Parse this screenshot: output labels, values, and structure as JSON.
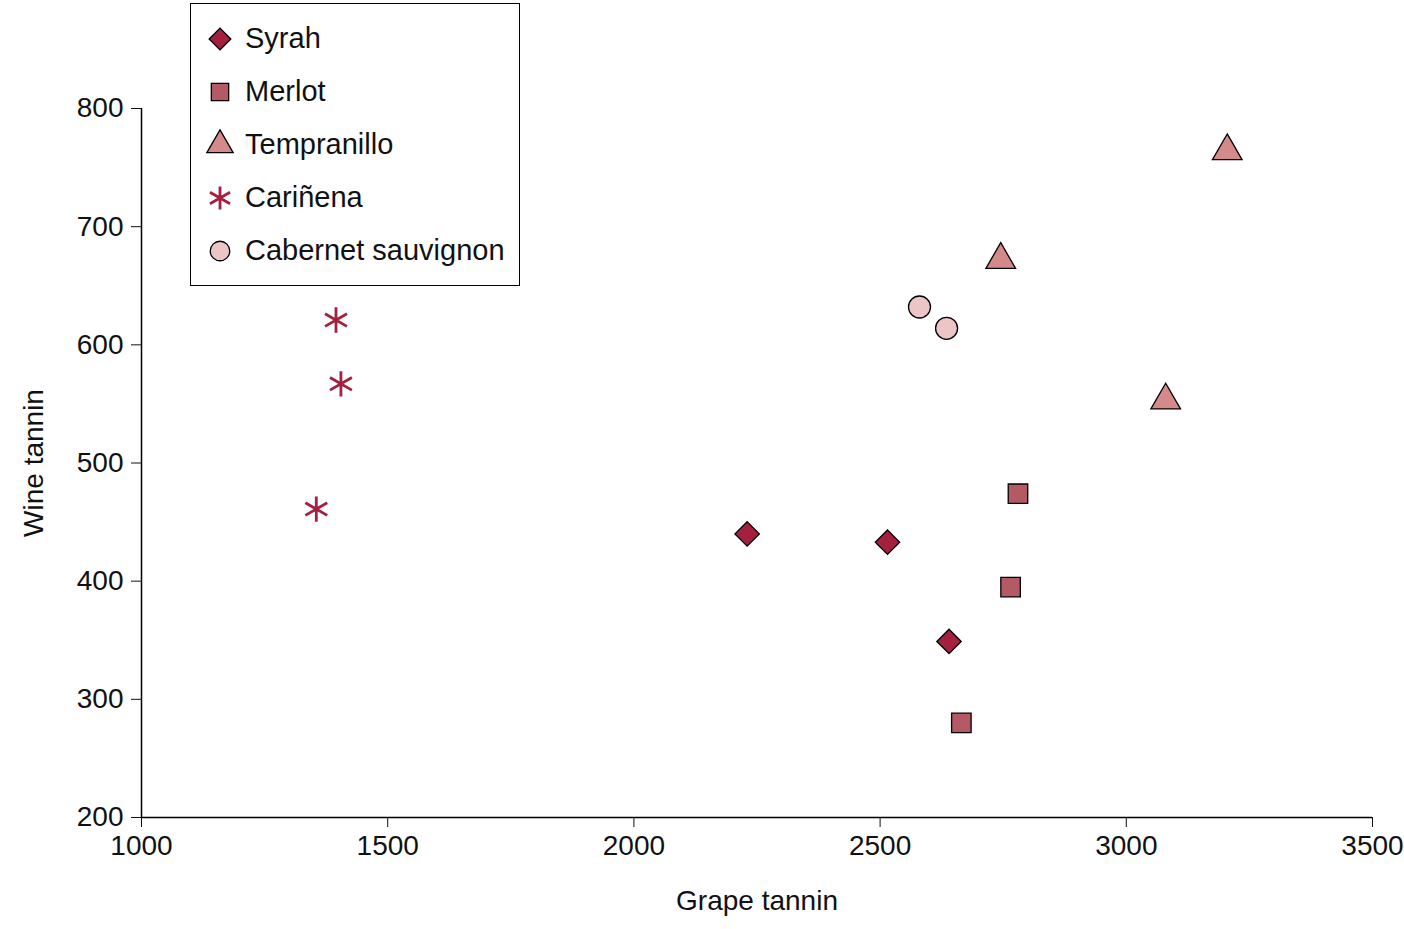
{
  "chart_data": {
    "type": "scatter",
    "x_label": "Grape tannin",
    "y_label": "Wine tannin",
    "xlim": [
      1000,
      3500
    ],
    "xticks": [
      1000,
      1500,
      2000,
      2500,
      3000,
      3500
    ],
    "ylim": [
      200,
      800
    ],
    "yticks": [
      200,
      300,
      400,
      500,
      600,
      700,
      800
    ],
    "grid": false,
    "legend": "upper left",
    "series": [
      {
        "name": "Syrah",
        "color": "#a3203f",
        "marker": "diamond",
        "x": [
          2230,
          2515,
          2640
        ],
        "y": [
          440,
          433,
          349
        ]
      },
      {
        "name": "Merlot",
        "color": "#b45a64",
        "marker": "square",
        "x": [
          2665,
          2765,
          2780
        ],
        "y": [
          280,
          395,
          474
        ]
      },
      {
        "name": "Tempranillo",
        "color": "#d48a8a",
        "marker": "triangle",
        "x": [
          2745,
          3080,
          3205
        ],
        "y": [
          672,
          553,
          764
        ]
      },
      {
        "name": "Cariñena",
        "color": "#a3203f",
        "marker": "asterisk",
        "x": [
          1395,
          1405,
          1355
        ],
        "y": [
          621,
          567,
          461
        ]
      },
      {
        "name": "Cabernet sauvignon",
        "color": "#ecc6c6",
        "marker": "circle",
        "x": [
          2580,
          2635
        ],
        "y": [
          632,
          614
        ]
      }
    ]
  }
}
